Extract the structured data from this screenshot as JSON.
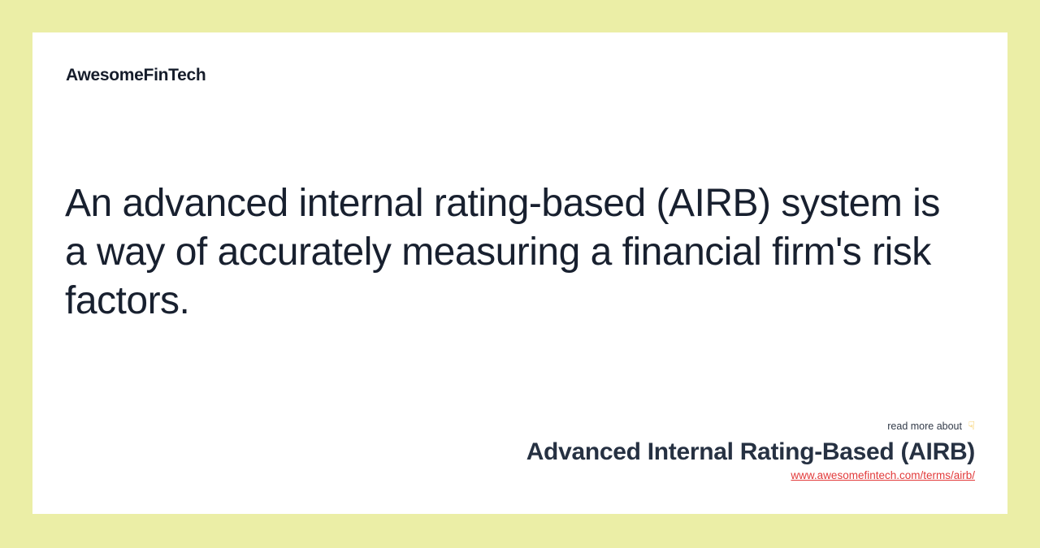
{
  "page": {
    "background_color": "#ebeea6",
    "card_color": "#ffffff"
  },
  "brand": {
    "logo_text": "AwesomeFinTech"
  },
  "definition": {
    "text": "An advanced internal rating-based (AIRB) system is a way of accurately measuring a financial firm's risk factors."
  },
  "read_more": {
    "label": "read more about",
    "icon_glyph": "☟"
  },
  "term": {
    "title": "Advanced Internal Rating-Based (AIRB)",
    "url": "www.awesomefintech.com/terms/airb/"
  },
  "colors": {
    "accent_red": "#e23a3a",
    "text_dark": "#18202f",
    "title_navy": "#263142",
    "emoji_yellow": "#f3b61f"
  }
}
